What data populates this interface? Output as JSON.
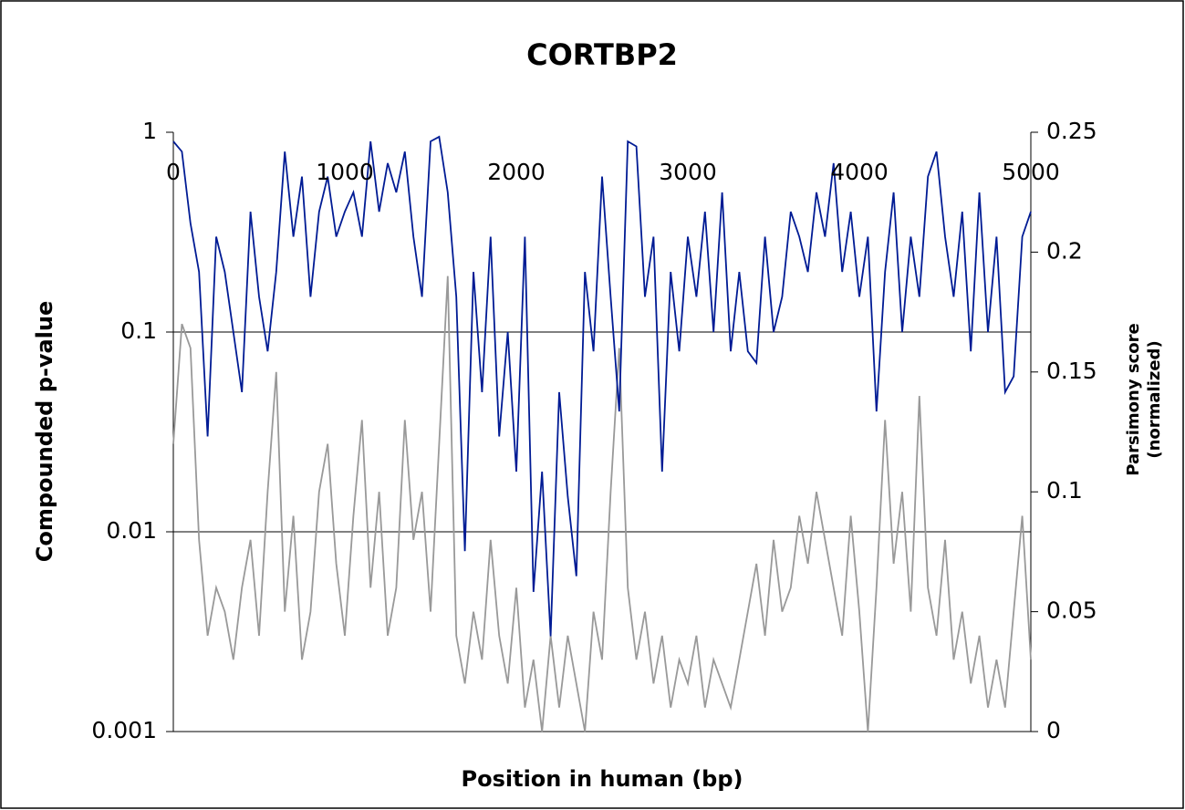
{
  "chart_data": {
    "type": "line",
    "title": "CORTBP2",
    "xlabel": "Position in human (bp)",
    "ylabel": "Compounded p-value",
    "y2label": [
      "Parsimony score",
      "(normalized)"
    ],
    "x": [
      0,
      50,
      100,
      150,
      200,
      250,
      300,
      350,
      400,
      450,
      500,
      550,
      600,
      650,
      700,
      750,
      800,
      850,
      900,
      950,
      1000,
      1050,
      1100,
      1150,
      1200,
      1250,
      1300,
      1350,
      1400,
      1450,
      1500,
      1550,
      1600,
      1650,
      1700,
      1750,
      1800,
      1850,
      1900,
      1950,
      2000,
      2050,
      2100,
      2150,
      2200,
      2250,
      2300,
      2350,
      2400,
      2450,
      2500,
      2550,
      2600,
      2650,
      2700,
      2750,
      2800,
      2850,
      2900,
      2950,
      3000,
      3050,
      3100,
      3150,
      3200,
      3250,
      3300,
      3350,
      3400,
      3450,
      3500,
      3550,
      3600,
      3650,
      3700,
      3750,
      3800,
      3850,
      3900,
      3950,
      4000,
      4050,
      4100,
      4150,
      4200,
      4250,
      4300,
      4350,
      4400,
      4450,
      4500,
      4550,
      4600,
      4650,
      4700,
      4750,
      4800,
      4850,
      4900,
      4950,
      5000
    ],
    "series": [
      {
        "color": "#001b94",
        "values": [
          0.9,
          0.8,
          0.35,
          0.2,
          0.03,
          0.3,
          0.2,
          0.1,
          0.05,
          0.4,
          0.15,
          0.08,
          0.2,
          0.8,
          0.3,
          0.6,
          0.15,
          0.4,
          0.6,
          0.3,
          0.4,
          0.5,
          0.3,
          0.9,
          0.4,
          0.7,
          0.5,
          0.8,
          0.3,
          0.15,
          0.9,
          0.95,
          0.5,
          0.15,
          0.008,
          0.2,
          0.05,
          0.3,
          0.03,
          0.1,
          0.02,
          0.3,
          0.005,
          0.02,
          0.003,
          0.05,
          0.015,
          0.006,
          0.2,
          0.08,
          0.6,
          0.15,
          0.04,
          0.9,
          0.85,
          0.15,
          0.3,
          0.02,
          0.2,
          0.08,
          0.3,
          0.15,
          0.4,
          0.1,
          0.5,
          0.08,
          0.2,
          0.08,
          0.07,
          0.3,
          0.1,
          0.15,
          0.4,
          0.3,
          0.2,
          0.5,
          0.3,
          0.7,
          0.2,
          0.4,
          0.15,
          0.3,
          0.04,
          0.2,
          0.5,
          0.1,
          0.3,
          0.15,
          0.6,
          0.8,
          0.3,
          0.15,
          0.4,
          0.08,
          0.5,
          0.1,
          0.3,
          0.05,
          0.06,
          0.3,
          0.4
        ]
      },
      {
        "color": "#999999",
        "axis": "y2",
        "values": [
          0.12,
          0.17,
          0.16,
          0.08,
          0.04,
          0.06,
          0.05,
          0.03,
          0.06,
          0.08,
          0.04,
          0.1,
          0.15,
          0.05,
          0.09,
          0.03,
          0.05,
          0.1,
          0.12,
          0.07,
          0.04,
          0.09,
          0.13,
          0.06,
          0.1,
          0.04,
          0.06,
          0.13,
          0.08,
          0.1,
          0.05,
          0.12,
          0.19,
          0.04,
          0.02,
          0.05,
          0.03,
          0.08,
          0.04,
          0.02,
          0.06,
          0.01,
          0.03,
          0,
          0.04,
          0.01,
          0.04,
          0.02,
          0,
          0.05,
          0.03,
          0.1,
          0.16,
          0.06,
          0.03,
          0.05,
          0.02,
          0.04,
          0.01,
          0.03,
          0.02,
          0.04,
          0.01,
          0.03,
          0.02,
          0.01,
          0.03,
          0.05,
          0.07,
          0.04,
          0.08,
          0.05,
          0.06,
          0.09,
          0.07,
          0.1,
          0.08,
          0.06,
          0.04,
          0.09,
          0.05,
          0,
          0.06,
          0.13,
          0.07,
          0.1,
          0.05,
          0.14,
          0.06,
          0.04,
          0.08,
          0.03,
          0.05,
          0.02,
          0.04,
          0.01,
          0.03,
          0.01,
          0.05,
          0.09,
          0.03
        ]
      }
    ],
    "xlim": [
      0,
      5000
    ],
    "xticks": [
      0,
      1000,
      2000,
      3000,
      4000,
      5000
    ],
    "ylim": [
      0.001,
      1
    ],
    "yticks": [
      1,
      0.1,
      0.01,
      0.001
    ],
    "ylog": true,
    "y2lim": [
      0,
      0.25
    ],
    "y2ticks": [
      0.25,
      0.2,
      0.15,
      0.1,
      0.05,
      0
    ],
    "grid": true
  }
}
